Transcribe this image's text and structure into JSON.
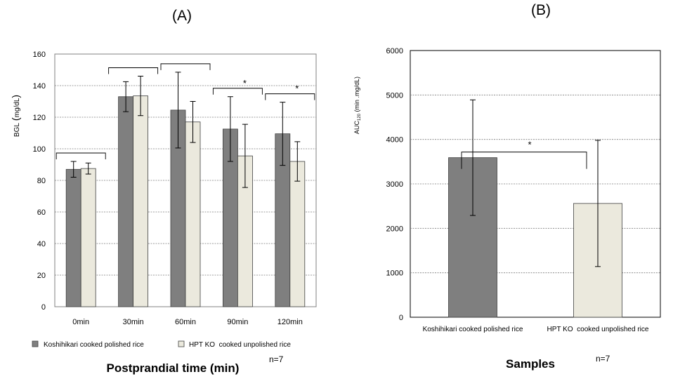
{
  "panels": {
    "a_label": "(A)",
    "b_label": "(B)"
  },
  "colors": {
    "series1": "#7f7f7f",
    "series2": "#ebe9dd",
    "bar_stroke": "#404040",
    "gridline": "#7f7f7f"
  },
  "chart_data": [
    {
      "type": "bar",
      "panel": "(A)",
      "categories": [
        "0min",
        "30min",
        "60min",
        "90min",
        "120min"
      ],
      "series": [
        {
          "name": "Koshihikari cooked polished rice",
          "values": [
            87,
            133,
            124.5,
            112.5,
            109.5
          ],
          "errors": [
            5,
            9.5,
            24,
            20.5,
            20
          ]
        },
        {
          "name": "HPT KO  cooked unpolished rice",
          "values": [
            87.5,
            133.5,
            117,
            95.5,
            92
          ],
          "errors": [
            3.5,
            12.5,
            13,
            20,
            12.5
          ]
        }
      ],
      "xlabel": "Postprandial time (min)",
      "ylabel_main": "BGL",
      "ylabel_unit": "mg/dL",
      "ylim": [
        0,
        160
      ],
      "yticks": [
        "0",
        "20",
        "40",
        "60",
        "80",
        "100",
        "120",
        "140",
        "160"
      ],
      "grid": true,
      "significance_marker": "*",
      "significant_groups": [
        "90min",
        "120min"
      ],
      "legend_position": "bottom",
      "note": "n=7"
    },
    {
      "type": "bar",
      "panel": "(B)",
      "categories": [
        "Koshihikari cooked polished rice",
        "HPT KO  cooked unpolished rice"
      ],
      "values": [
        3590,
        2560
      ],
      "errors": [
        1300,
        1420
      ],
      "xlabel": "Samples",
      "ylabel_prefix": "AUC",
      "ylabel_sub": "120",
      "ylabel_suffix": " (min .mg/dL)",
      "ylim": [
        0,
        6000
      ],
      "yticks": [
        "0",
        "1000",
        "2000",
        "3000",
        "4000",
        "5000",
        "6000"
      ],
      "grid": true,
      "significance_marker": "*",
      "note": "n=7"
    }
  ]
}
